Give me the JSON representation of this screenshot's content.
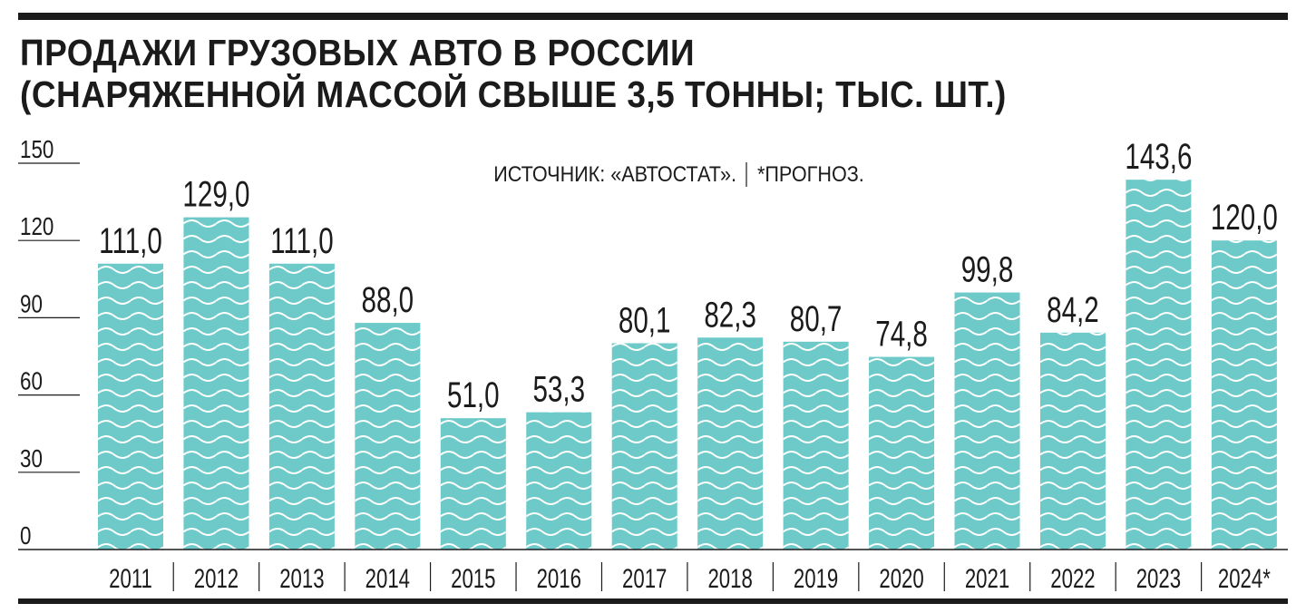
{
  "colors": {
    "bar": "#6dcac9",
    "wave": "#ffffff",
    "ink": "#1b1b1b"
  },
  "chart_data": {
    "type": "bar",
    "title": "ПРОДАЖИ ГРУЗОВЫХ АВТО В РОССИИ",
    "subtitle": "(СНАРЯЖЕННОЙ МАССОЙ СВЫШЕ 3,5 ТОННЫ; ТЫС. ШТ.)",
    "source": "ИСТОЧНИК: «АВТОСТАТ».",
    "note": "*ПРОГНОЗ.",
    "categories": [
      "2011",
      "2012",
      "2013",
      "2014",
      "2015",
      "2016",
      "2017",
      "2018",
      "2019",
      "2020",
      "2021",
      "2022",
      "2023",
      "2024*"
    ],
    "values": [
      111.0,
      129.0,
      111.0,
      88.0,
      51.0,
      53.3,
      80.1,
      82.3,
      80.7,
      74.8,
      99.8,
      84.2,
      143.6,
      120.0
    ],
    "value_labels": [
      "111,0",
      "129,0",
      "111,0",
      "88,0",
      "51,0",
      "53,3",
      "80,1",
      "82,3",
      "80,7",
      "74,8",
      "99,8",
      "84,2",
      "143,6",
      "120,0"
    ],
    "y_ticks": [
      0,
      30,
      60,
      90,
      120,
      150
    ],
    "ylim": [
      0,
      150
    ],
    "grid": false
  }
}
